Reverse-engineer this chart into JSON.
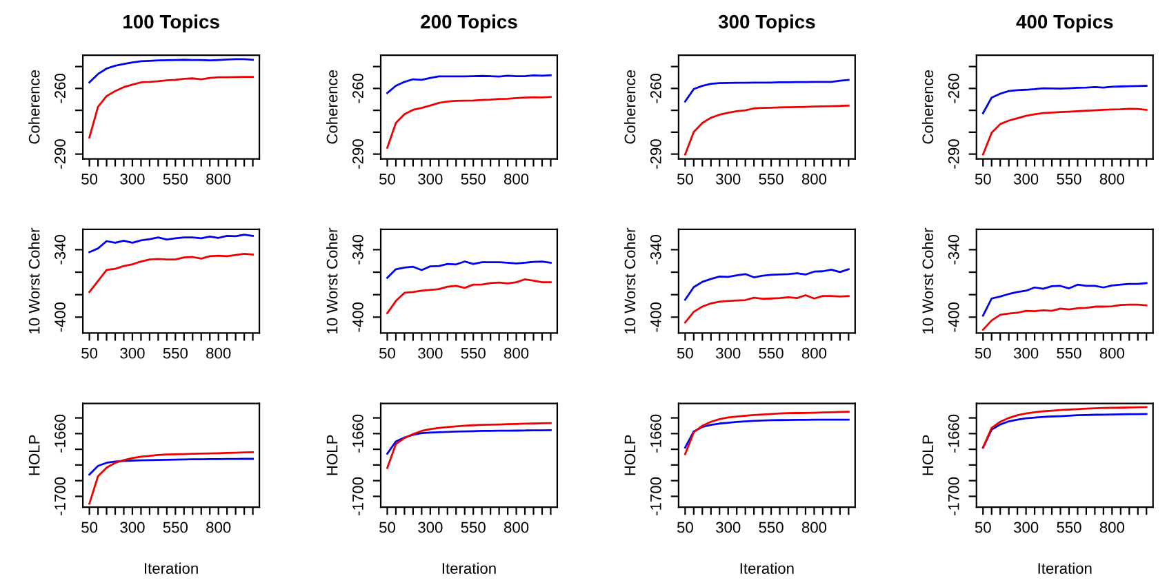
{
  "chart_data": [
    {
      "type": "line",
      "title": "100 Topics",
      "ylabel": "Coherence",
      "x": [
        50,
        100,
        150,
        200,
        250,
        300,
        350,
        400,
        450,
        500,
        550,
        600,
        650,
        700,
        750,
        800,
        850,
        900,
        950,
        1000
      ],
      "xlim": [
        12,
        1038
      ],
      "ylim": [
        -292.2,
        -244.8
      ],
      "xticks": [
        50,
        {
          "value": 100,
          "label": null
        },
        {
          "value": 150,
          "label": null
        },
        {
          "value": 200,
          "label": null
        },
        {
          "value": 250,
          "label": null
        },
        300,
        {
          "value": 350,
          "label": null
        },
        {
          "value": 400,
          "label": null
        },
        {
          "value": 450,
          "label": null
        },
        {
          "value": 500,
          "label": null
        },
        550,
        {
          "value": 600,
          "label": null
        },
        {
          "value": 650,
          "label": null
        },
        {
          "value": 700,
          "label": null
        },
        {
          "value": 750,
          "label": null
        },
        800,
        {
          "value": 850,
          "label": null
        },
        {
          "value": 900,
          "label": null
        },
        {
          "value": 950,
          "label": null
        },
        {
          "value": 1000,
          "label": null
        }
      ],
      "yticks": [
        {
          "value": -250,
          "label": null
        },
        -260,
        {
          "value": -270,
          "label": null
        },
        {
          "value": -280,
          "label": null
        },
        -290
      ],
      "series": [
        {
          "color": "#0000ee",
          "values": [
            -257.2,
            -253.4,
            -250.9,
            -249.6,
            -248.8,
            -248.1,
            -247.6,
            -247.4,
            -247.2,
            -247.1,
            -247.0,
            -246.9,
            -247.0,
            -247.0,
            -247.2,
            -247.0,
            -246.8,
            -246.6,
            -246.6,
            -246.9
          ]
        },
        {
          "color": "#ee0000",
          "values": [
            -282.4,
            -268.4,
            -263.5,
            -261.2,
            -259.4,
            -258.3,
            -257.2,
            -257.0,
            -256.7,
            -256.3,
            -256.1,
            -255.6,
            -255.4,
            -255.8,
            -255.2,
            -254.9,
            -254.9,
            -254.8,
            -254.7,
            -254.7
          ]
        }
      ]
    },
    {
      "type": "line",
      "title": "200 Topics",
      "ylabel": "Coherence",
      "x": [
        50,
        100,
        150,
        200,
        250,
        300,
        350,
        400,
        450,
        500,
        550,
        600,
        650,
        700,
        750,
        800,
        850,
        900,
        950,
        1000
      ],
      "xlim": [
        12,
        1038
      ],
      "ylim": [
        -292.2,
        -244.8
      ],
      "xticks": [
        50,
        {
          "value": 100,
          "label": null
        },
        {
          "value": 150,
          "label": null
        },
        {
          "value": 200,
          "label": null
        },
        {
          "value": 250,
          "label": null
        },
        300,
        {
          "value": 350,
          "label": null
        },
        {
          "value": 400,
          "label": null
        },
        {
          "value": 450,
          "label": null
        },
        {
          "value": 500,
          "label": null
        },
        550,
        {
          "value": 600,
          "label": null
        },
        {
          "value": 650,
          "label": null
        },
        {
          "value": 700,
          "label": null
        },
        {
          "value": 750,
          "label": null
        },
        800,
        {
          "value": 850,
          "label": null
        },
        {
          "value": 900,
          "label": null
        },
        {
          "value": 950,
          "label": null
        },
        {
          "value": 1000,
          "label": null
        }
      ],
      "yticks": [
        {
          "value": -250,
          "label": null
        },
        -260,
        {
          "value": -270,
          "label": null
        },
        {
          "value": -280,
          "label": null
        },
        -290
      ],
      "series": [
        {
          "color": "#0000ee",
          "values": [
            -262.1,
            -258.8,
            -257.0,
            -255.8,
            -256.1,
            -255.2,
            -254.5,
            -254.5,
            -254.5,
            -254.5,
            -254.4,
            -254.3,
            -254.4,
            -254.6,
            -254.2,
            -254.4,
            -254.4,
            -254.0,
            -254.2,
            -254.0
          ]
        },
        {
          "color": "#ee0000",
          "values": [
            -287.1,
            -275.8,
            -271.8,
            -269.8,
            -268.9,
            -267.8,
            -266.6,
            -266.0,
            -265.7,
            -265.6,
            -265.5,
            -265.3,
            -265.1,
            -264.8,
            -264.7,
            -264.4,
            -264.2,
            -264.0,
            -264.1,
            -263.9
          ]
        }
      ]
    },
    {
      "type": "line",
      "title": "300 Topics",
      "ylabel": "Coherence",
      "x": [
        50,
        100,
        150,
        200,
        250,
        300,
        350,
        400,
        450,
        500,
        550,
        600,
        650,
        700,
        750,
        800,
        850,
        900,
        950,
        1000
      ],
      "xlim": [
        12,
        1038
      ],
      "ylim": [
        -292.2,
        -244.8
      ],
      "xticks": [
        50,
        {
          "value": 100,
          "label": null
        },
        {
          "value": 150,
          "label": null
        },
        {
          "value": 200,
          "label": null
        },
        {
          "value": 250,
          "label": null
        },
        300,
        {
          "value": 350,
          "label": null
        },
        {
          "value": 400,
          "label": null
        },
        {
          "value": 450,
          "label": null
        },
        {
          "value": 500,
          "label": null
        },
        550,
        {
          "value": 600,
          "label": null
        },
        {
          "value": 650,
          "label": null
        },
        {
          "value": 700,
          "label": null
        },
        {
          "value": 750,
          "label": null
        },
        800,
        {
          "value": 850,
          "label": null
        },
        {
          "value": 900,
          "label": null
        },
        {
          "value": 950,
          "label": null
        },
        {
          "value": 1000,
          "label": null
        }
      ],
      "yticks": [
        {
          "value": -250,
          "label": null
        },
        -260,
        {
          "value": -270,
          "label": null
        },
        {
          "value": -280,
          "label": null
        },
        -290
      ],
      "series": [
        {
          "color": "#0000ee",
          "values": [
            -266.0,
            -260.3,
            -258.8,
            -257.9,
            -257.6,
            -257.5,
            -257.4,
            -257.4,
            -257.3,
            -257.3,
            -257.3,
            -257.2,
            -257.2,
            -257.1,
            -257.1,
            -257.0,
            -257.0,
            -257.0,
            -256.5,
            -256.1
          ]
        },
        {
          "color": "#ee0000",
          "values": [
            -290.2,
            -279.9,
            -275.8,
            -273.4,
            -272.0,
            -271.1,
            -270.4,
            -270.0,
            -269.1,
            -268.9,
            -268.8,
            -268.7,
            -268.6,
            -268.5,
            -268.4,
            -268.3,
            -268.2,
            -268.1,
            -268.0,
            -267.8
          ]
        }
      ]
    },
    {
      "type": "line",
      "title": "400 Topics",
      "ylabel": "Coherence",
      "x": [
        50,
        100,
        150,
        200,
        250,
        300,
        350,
        400,
        450,
        500,
        550,
        600,
        650,
        700,
        750,
        800,
        850,
        900,
        950,
        1000
      ],
      "xlim": [
        12,
        1038
      ],
      "ylim": [
        -292.2,
        -244.8
      ],
      "xticks": [
        50,
        {
          "value": 100,
          "label": null
        },
        {
          "value": 150,
          "label": null
        },
        {
          "value": 200,
          "label": null
        },
        {
          "value": 250,
          "label": null
        },
        300,
        {
          "value": 350,
          "label": null
        },
        {
          "value": 400,
          "label": null
        },
        {
          "value": 450,
          "label": null
        },
        {
          "value": 500,
          "label": null
        },
        550,
        {
          "value": 600,
          "label": null
        },
        {
          "value": 650,
          "label": null
        },
        {
          "value": 700,
          "label": null
        },
        {
          "value": 750,
          "label": null
        },
        800,
        {
          "value": 850,
          "label": null
        },
        {
          "value": 900,
          "label": null
        },
        {
          "value": 950,
          "label": null
        },
        {
          "value": 1000,
          "label": null
        }
      ],
      "yticks": [
        {
          "value": -250,
          "label": null
        },
        -260,
        {
          "value": -270,
          "label": null
        },
        {
          "value": -280,
          "label": null
        },
        -290
      ],
      "series": [
        {
          "color": "#0000ee",
          "values": [
            -271.3,
            -264.2,
            -262.4,
            -261.2,
            -260.8,
            -260.6,
            -260.3,
            -259.9,
            -260.0,
            -260.1,
            -259.9,
            -259.7,
            -259.6,
            -259.4,
            -259.6,
            -259.2,
            -259.1,
            -259.0,
            -258.9,
            -258.8
          ]
        },
        {
          "color": "#ee0000",
          "values": [
            -290.2,
            -280.3,
            -276.3,
            -274.7,
            -273.6,
            -272.5,
            -271.8,
            -271.3,
            -271.0,
            -270.8,
            -270.6,
            -270.4,
            -270.2,
            -270.0,
            -269.8,
            -269.6,
            -269.5,
            -269.3,
            -269.4,
            -269.8
          ]
        }
      ]
    },
    {
      "type": "line",
      "ylabel": "10 Worst Coher",
      "x": [
        50,
        100,
        150,
        200,
        250,
        300,
        350,
        400,
        450,
        500,
        550,
        600,
        650,
        700,
        750,
        800,
        850,
        900,
        950,
        1000
      ],
      "xlim": [
        12,
        1038
      ],
      "ylim": [
        -414.1,
        -321.9
      ],
      "xticks": [
        50,
        {
          "value": 100,
          "label": null
        },
        {
          "value": 150,
          "label": null
        },
        {
          "value": 200,
          "label": null
        },
        {
          "value": 250,
          "label": null
        },
        300,
        {
          "value": 350,
          "label": null
        },
        {
          "value": 400,
          "label": null
        },
        {
          "value": 450,
          "label": null
        },
        {
          "value": 500,
          "label": null
        },
        550,
        {
          "value": 600,
          "label": null
        },
        {
          "value": 650,
          "label": null
        },
        {
          "value": 700,
          "label": null
        },
        {
          "value": 750,
          "label": null
        },
        800,
        {
          "value": 850,
          "label": null
        },
        {
          "value": 900,
          "label": null
        },
        {
          "value": 950,
          "label": null
        },
        {
          "value": 1000,
          "label": null
        }
      ],
      "yticks": [
        -340,
        {
          "value": -360,
          "label": null
        },
        {
          "value": -380,
          "label": null
        },
        -400
      ],
      "series": [
        {
          "color": "#0000ee",
          "values": [
            -342.2,
            -338.9,
            -332.4,
            -333.9,
            -332.0,
            -333.9,
            -331.7,
            -330.6,
            -329.1,
            -331.0,
            -329.9,
            -329.1,
            -329.1,
            -329.9,
            -328.4,
            -329.5,
            -327.7,
            -328.0,
            -326.6,
            -327.7
          ]
        },
        {
          "color": "#ee0000",
          "values": [
            -377.6,
            -367.8,
            -358.1,
            -357.0,
            -354.5,
            -353.0,
            -350.5,
            -348.7,
            -348.3,
            -348.7,
            -348.7,
            -346.9,
            -346.5,
            -348.0,
            -345.8,
            -345.4,
            -345.8,
            -344.7,
            -343.6,
            -344.3
          ]
        }
      ]
    },
    {
      "type": "line",
      "ylabel": "10 Worst Coher",
      "x": [
        50,
        100,
        150,
        200,
        250,
        300,
        350,
        400,
        450,
        500,
        550,
        600,
        650,
        700,
        750,
        800,
        850,
        900,
        950,
        1000
      ],
      "xlim": [
        12,
        1038
      ],
      "ylim": [
        -414.1,
        -321.9
      ],
      "xticks": [
        50,
        {
          "value": 100,
          "label": null
        },
        {
          "value": 150,
          "label": null
        },
        {
          "value": 200,
          "label": null
        },
        {
          "value": 250,
          "label": null
        },
        300,
        {
          "value": 350,
          "label": null
        },
        {
          "value": 400,
          "label": null
        },
        {
          "value": 450,
          "label": null
        },
        {
          "value": 500,
          "label": null
        },
        550,
        {
          "value": 600,
          "label": null
        },
        {
          "value": 650,
          "label": null
        },
        {
          "value": 700,
          "label": null
        },
        {
          "value": 750,
          "label": null
        },
        800,
        {
          "value": 850,
          "label": null
        },
        {
          "value": 900,
          "label": null
        },
        {
          "value": 950,
          "label": null
        },
        {
          "value": 1000,
          "label": null
        }
      ],
      "yticks": [
        -340,
        {
          "value": -360,
          "label": null
        },
        {
          "value": -380,
          "label": null
        },
        -400
      ],
      "series": [
        {
          "color": "#0000ee",
          "values": [
            -365.0,
            -357.4,
            -355.9,
            -355.2,
            -358.1,
            -354.8,
            -354.5,
            -352.7,
            -353.1,
            -350.5,
            -352.7,
            -351.2,
            -351.2,
            -351.2,
            -351.6,
            -352.3,
            -351.6,
            -350.8,
            -350.5,
            -351.6
          ]
        },
        {
          "color": "#ee0000",
          "values": [
            -396.4,
            -385.6,
            -378.3,
            -377.6,
            -376.5,
            -375.8,
            -375.1,
            -372.9,
            -372.2,
            -374.0,
            -371.1,
            -371.1,
            -369.7,
            -369.3,
            -370.0,
            -368.9,
            -366.4,
            -367.5,
            -368.9,
            -368.9
          ]
        }
      ]
    },
    {
      "type": "line",
      "ylabel": "10 Worst Coher",
      "x": [
        50,
        100,
        150,
        200,
        250,
        300,
        350,
        400,
        450,
        500,
        550,
        600,
        650,
        700,
        750,
        800,
        850,
        900,
        950,
        1000
      ],
      "xlim": [
        12,
        1038
      ],
      "ylim": [
        -414.1,
        -321.9
      ],
      "xticks": [
        50,
        {
          "value": 100,
          "label": null
        },
        {
          "value": 150,
          "label": null
        },
        {
          "value": 200,
          "label": null
        },
        {
          "value": 250,
          "label": null
        },
        300,
        {
          "value": 350,
          "label": null
        },
        {
          "value": 400,
          "label": null
        },
        {
          "value": 450,
          "label": null
        },
        {
          "value": 500,
          "label": null
        },
        550,
        {
          "value": 600,
          "label": null
        },
        {
          "value": 650,
          "label": null
        },
        {
          "value": 700,
          "label": null
        },
        {
          "value": 750,
          "label": null
        },
        800,
        {
          "value": 850,
          "label": null
        },
        {
          "value": 900,
          "label": null
        },
        {
          "value": 950,
          "label": null
        },
        {
          "value": 1000,
          "label": null
        }
      ],
      "yticks": [
        -340,
        {
          "value": -360,
          "label": null
        },
        {
          "value": -380,
          "label": null
        },
        -400
      ],
      "series": [
        {
          "color": "#0000ee",
          "values": [
            -384.5,
            -373.3,
            -368.6,
            -366.0,
            -363.9,
            -364.2,
            -362.8,
            -361.7,
            -364.6,
            -363.1,
            -362.4,
            -362.1,
            -361.7,
            -361.0,
            -362.1,
            -359.5,
            -359.2,
            -357.7,
            -359.9,
            -357.4
          ]
        },
        {
          "color": "#ee0000",
          "values": [
            -404.7,
            -395.3,
            -390.6,
            -387.7,
            -386.3,
            -385.6,
            -385.2,
            -384.8,
            -382.7,
            -383.7,
            -383.4,
            -383.0,
            -382.3,
            -383.0,
            -380.5,
            -383.4,
            -381.2,
            -381.2,
            -381.6,
            -381.2
          ]
        }
      ]
    },
    {
      "type": "line",
      "ylabel": "10 Worst Coher",
      "x": [
        50,
        100,
        150,
        200,
        250,
        300,
        350,
        400,
        450,
        500,
        550,
        600,
        650,
        700,
        750,
        800,
        850,
        900,
        950,
        1000
      ],
      "xlim": [
        12,
        1038
      ],
      "ylim": [
        -414.1,
        -321.9
      ],
      "xticks": [
        50,
        {
          "value": 100,
          "label": null
        },
        {
          "value": 150,
          "label": null
        },
        {
          "value": 200,
          "label": null
        },
        {
          "value": 250,
          "label": null
        },
        300,
        {
          "value": 350,
          "label": null
        },
        {
          "value": 400,
          "label": null
        },
        {
          "value": 450,
          "label": null
        },
        {
          "value": 500,
          "label": null
        },
        550,
        {
          "value": 600,
          "label": null
        },
        {
          "value": 650,
          "label": null
        },
        {
          "value": 700,
          "label": null
        },
        {
          "value": 750,
          "label": null
        },
        800,
        {
          "value": 850,
          "label": null
        },
        {
          "value": 900,
          "label": null
        },
        {
          "value": 950,
          "label": null
        },
        {
          "value": 1000,
          "label": null
        }
      ],
      "yticks": [
        -340,
        {
          "value": -360,
          "label": null
        },
        {
          "value": -380,
          "label": null
        },
        -400
      ],
      "series": [
        {
          "color": "#0000ee",
          "values": [
            -398.6,
            -383.4,
            -381.6,
            -379.4,
            -377.6,
            -376.5,
            -373.6,
            -374.7,
            -372.5,
            -372.2,
            -374.4,
            -371.1,
            -372.2,
            -372.2,
            -373.6,
            -371.8,
            -371.1,
            -370.4,
            -370.4,
            -369.7
          ]
        },
        {
          "color": "#ee0000",
          "values": [
            -411.2,
            -402.9,
            -397.9,
            -396.8,
            -396.1,
            -394.3,
            -394.6,
            -393.9,
            -394.3,
            -392.4,
            -393.1,
            -392.0,
            -391.7,
            -390.6,
            -390.6,
            -390.3,
            -389.2,
            -388.8,
            -388.8,
            -389.5
          ]
        }
      ]
    },
    {
      "type": "line",
      "ylabel": "HOLP",
      "xlabel": "Iteration",
      "x": [
        50,
        100,
        150,
        200,
        250,
        300,
        350,
        400,
        450,
        500,
        550,
        600,
        650,
        700,
        750,
        800,
        850,
        900,
        950,
        1000
      ],
      "xlim": [
        12,
        1038
      ],
      "ylim": [
        -1706.9,
        -1640.8
      ],
      "xticks": [
        50,
        {
          "value": 100,
          "label": null
        },
        {
          "value": 150,
          "label": null
        },
        {
          "value": 200,
          "label": null
        },
        {
          "value": 250,
          "label": null
        },
        300,
        {
          "value": 350,
          "label": null
        },
        {
          "value": 400,
          "label": null
        },
        {
          "value": 450,
          "label": null
        },
        {
          "value": 500,
          "label": null
        },
        550,
        {
          "value": 600,
          "label": null
        },
        {
          "value": 650,
          "label": null
        },
        {
          "value": 700,
          "label": null
        },
        {
          "value": 750,
          "label": null
        },
        800,
        {
          "value": 850,
          "label": null
        },
        {
          "value": 900,
          "label": null
        },
        {
          "value": 950,
          "label": null
        },
        {
          "value": 1000,
          "label": null
        }
      ],
      "yticks": [
        {
          "value": -1650,
          "label": null
        },
        -1660,
        {
          "value": -1670,
          "label": null
        },
        {
          "value": -1680,
          "label": null
        },
        {
          "value": -1690,
          "label": null
        },
        -1700
      ],
      "series": [
        {
          "color": "#0000ee",
          "values": [
            -1686.1,
            -1680.6,
            -1678.6,
            -1677.8,
            -1677.5,
            -1677.2,
            -1677.0,
            -1676.9,
            -1676.8,
            -1676.7,
            -1676.6,
            -1676.5,
            -1676.4,
            -1676.4,
            -1676.3,
            -1676.3,
            -1676.2,
            -1676.2,
            -1676.1,
            -1676.1
          ]
        },
        {
          "color": "#ee0000",
          "values": [
            -1704.7,
            -1687.2,
            -1681.7,
            -1678.6,
            -1676.9,
            -1675.6,
            -1674.7,
            -1674.2,
            -1673.6,
            -1673.3,
            -1673.2,
            -1673.1,
            -1672.9,
            -1672.8,
            -1672.6,
            -1672.5,
            -1672.3,
            -1672.2,
            -1672.0,
            -1671.9
          ]
        }
      ]
    },
    {
      "type": "line",
      "ylabel": "HOLP",
      "xlabel": "Iteration",
      "x": [
        50,
        100,
        150,
        200,
        250,
        300,
        350,
        400,
        450,
        500,
        550,
        600,
        650,
        700,
        750,
        800,
        850,
        900,
        950,
        1000
      ],
      "xlim": [
        12,
        1038
      ],
      "ylim": [
        -1706.9,
        -1640.8
      ],
      "xticks": [
        50,
        {
          "value": 100,
          "label": null
        },
        {
          "value": 150,
          "label": null
        },
        {
          "value": 200,
          "label": null
        },
        {
          "value": 250,
          "label": null
        },
        300,
        {
          "value": 350,
          "label": null
        },
        {
          "value": 400,
          "label": null
        },
        {
          "value": 450,
          "label": null
        },
        {
          "value": 500,
          "label": null
        },
        550,
        {
          "value": 600,
          "label": null
        },
        {
          "value": 650,
          "label": null
        },
        {
          "value": 700,
          "label": null
        },
        {
          "value": 750,
          "label": null
        },
        800,
        {
          "value": 850,
          "label": null
        },
        {
          "value": 900,
          "label": null
        },
        {
          "value": 950,
          "label": null
        },
        {
          "value": 1000,
          "label": null
        }
      ],
      "yticks": [
        {
          "value": -1650,
          "label": null
        },
        -1660,
        {
          "value": -1670,
          "label": null
        },
        {
          "value": -1680,
          "label": null
        },
        {
          "value": -1690,
          "label": null
        },
        -1700
      ],
      "series": [
        {
          "color": "#0000ee",
          "values": [
            -1672.8,
            -1665.0,
            -1662.5,
            -1660.8,
            -1659.7,
            -1659.4,
            -1659.1,
            -1658.9,
            -1658.7,
            -1658.6,
            -1658.5,
            -1658.3,
            -1658.3,
            -1658.2,
            -1658.2,
            -1658.1,
            -1658.0,
            -1657.9,
            -1657.9,
            -1657.8
          ]
        },
        {
          "color": "#ee0000",
          "values": [
            -1681.9,
            -1666.7,
            -1662.8,
            -1660.3,
            -1658.3,
            -1657.2,
            -1656.4,
            -1655.8,
            -1655.4,
            -1655.0,
            -1654.7,
            -1654.4,
            -1654.3,
            -1654.2,
            -1654.0,
            -1653.9,
            -1653.7,
            -1653.6,
            -1653.4,
            -1653.3
          ]
        }
      ]
    },
    {
      "type": "line",
      "ylabel": "HOLP",
      "xlabel": "Iteration",
      "x": [
        50,
        100,
        150,
        200,
        250,
        300,
        350,
        400,
        450,
        500,
        550,
        600,
        650,
        700,
        750,
        800,
        850,
        900,
        950,
        1000
      ],
      "xlim": [
        12,
        1038
      ],
      "ylim": [
        -1706.9,
        -1640.8
      ],
      "xticks": [
        50,
        {
          "value": 100,
          "label": null
        },
        {
          "value": 150,
          "label": null
        },
        {
          "value": 200,
          "label": null
        },
        {
          "value": 250,
          "label": null
        },
        300,
        {
          "value": 350,
          "label": null
        },
        {
          "value": 400,
          "label": null
        },
        {
          "value": 450,
          "label": null
        },
        {
          "value": 500,
          "label": null
        },
        550,
        {
          "value": 600,
          "label": null
        },
        {
          "value": 650,
          "label": null
        },
        {
          "value": 700,
          "label": null
        },
        {
          "value": 750,
          "label": null
        },
        800,
        {
          "value": 850,
          "label": null
        },
        {
          "value": 900,
          "label": null
        },
        {
          "value": 950,
          "label": null
        },
        {
          "value": 1000,
          "label": null
        }
      ],
      "yticks": [
        {
          "value": -1650,
          "label": null
        },
        -1660,
        {
          "value": -1670,
          "label": null
        },
        {
          "value": -1680,
          "label": null
        },
        {
          "value": -1690,
          "label": null
        },
        -1700
      ],
      "series": [
        {
          "color": "#0000ee",
          "values": [
            -1668.9,
            -1658.6,
            -1655.8,
            -1654.4,
            -1653.6,
            -1653.1,
            -1652.6,
            -1652.2,
            -1651.9,
            -1651.7,
            -1651.5,
            -1651.4,
            -1651.3,
            -1651.2,
            -1651.2,
            -1651.1,
            -1651.1,
            -1651.1,
            -1651.1,
            -1651.1
          ]
        },
        {
          "color": "#ee0000",
          "values": [
            -1673.1,
            -1659.2,
            -1655.0,
            -1652.5,
            -1650.8,
            -1649.7,
            -1649.1,
            -1648.6,
            -1648.2,
            -1647.8,
            -1647.5,
            -1647.2,
            -1647.0,
            -1646.9,
            -1646.8,
            -1646.7,
            -1646.5,
            -1646.4,
            -1646.2,
            -1646.1
          ]
        }
      ]
    },
    {
      "type": "line",
      "ylabel": "HOLP",
      "xlabel": "Iteration",
      "x": [
        50,
        100,
        150,
        200,
        250,
        300,
        350,
        400,
        450,
        500,
        550,
        600,
        650,
        700,
        750,
        800,
        850,
        900,
        950,
        1000
      ],
      "xlim": [
        12,
        1038
      ],
      "ylim": [
        -1706.9,
        -1640.8
      ],
      "xticks": [
        50,
        {
          "value": 100,
          "label": null
        },
        {
          "value": 150,
          "label": null
        },
        {
          "value": 200,
          "label": null
        },
        {
          "value": 250,
          "label": null
        },
        300,
        {
          "value": 350,
          "label": null
        },
        {
          "value": 400,
          "label": null
        },
        {
          "value": 450,
          "label": null
        },
        {
          "value": 500,
          "label": null
        },
        550,
        {
          "value": 600,
          "label": null
        },
        {
          "value": 650,
          "label": null
        },
        {
          "value": 700,
          "label": null
        },
        {
          "value": 750,
          "label": null
        },
        800,
        {
          "value": 850,
          "label": null
        },
        {
          "value": 900,
          "label": null
        },
        {
          "value": 950,
          "label": null
        },
        {
          "value": 1000,
          "label": null
        }
      ],
      "yticks": [
        {
          "value": -1650,
          "label": null
        },
        -1660,
        {
          "value": -1670,
          "label": null
        },
        {
          "value": -1680,
          "label": null
        },
        {
          "value": -1690,
          "label": null
        },
        -1700
      ],
      "series": [
        {
          "color": "#0000ee",
          "values": [
            -1668.9,
            -1657.5,
            -1654.2,
            -1652.2,
            -1651.1,
            -1650.3,
            -1649.8,
            -1649.4,
            -1649.1,
            -1648.9,
            -1648.6,
            -1648.3,
            -1648.2,
            -1648.0,
            -1647.9,
            -1647.8,
            -1647.7,
            -1647.6,
            -1647.6,
            -1647.5
          ]
        },
        {
          "color": "#ee0000",
          "values": [
            -1668.9,
            -1656.4,
            -1652.5,
            -1650.0,
            -1648.3,
            -1647.2,
            -1646.4,
            -1645.8,
            -1645.4,
            -1645.0,
            -1644.7,
            -1644.4,
            -1644.1,
            -1643.9,
            -1643.7,
            -1643.6,
            -1643.5,
            -1643.3,
            -1643.2,
            -1643.1
          ]
        }
      ]
    }
  ]
}
